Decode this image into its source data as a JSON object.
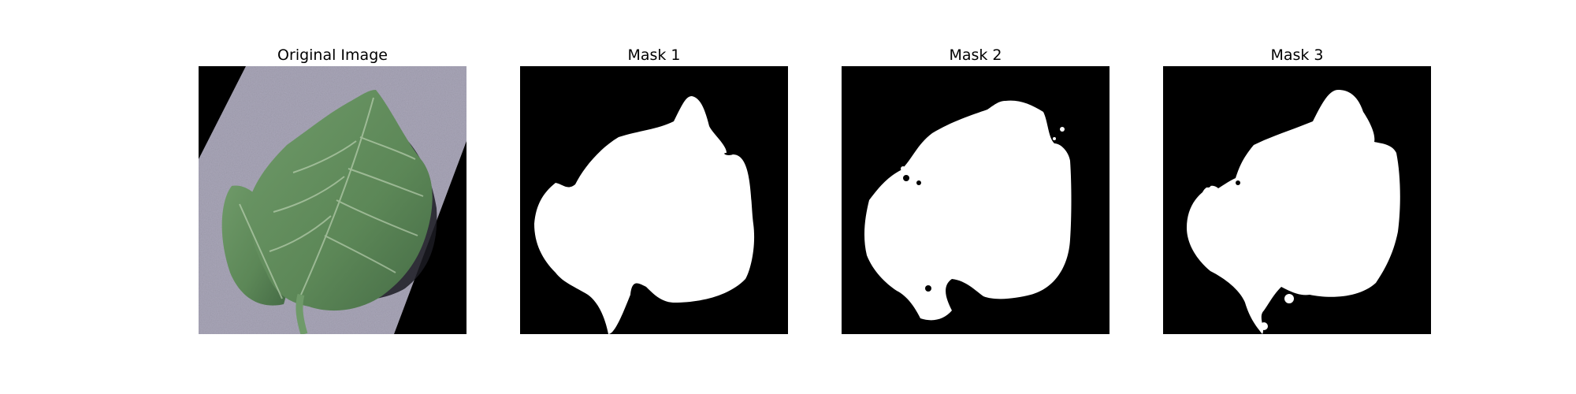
{
  "figure": {
    "panels": [
      {
        "title": "Original Image"
      },
      {
        "title": "Mask 1"
      },
      {
        "title": "Mask 2"
      },
      {
        "title": "Mask 3"
      }
    ]
  },
  "colors": {
    "background": "#ffffff",
    "mask_background": "#000000",
    "mask_foreground": "#ffffff",
    "leaf_green": "#5f8a5b",
    "leaf_shadow": "#2f4a33",
    "backdrop_gray": "#a9a6b8"
  }
}
